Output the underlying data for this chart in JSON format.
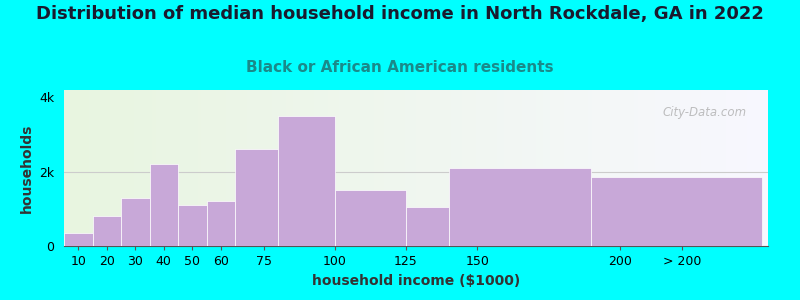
{
  "title": "Distribution of median household income in North Rockdale, GA in 2022",
  "subtitle": "Black or African American residents",
  "xlabel": "household income ($1000)",
  "ylabel": "households",
  "background_color": "#00FFFF",
  "bar_color": "#c8a8d8",
  "values": [
    350,
    800,
    1300,
    2200,
    1100,
    1200,
    2600,
    3500,
    1500,
    1050,
    2100,
    1850
  ],
  "bar_lefts": [
    5,
    15,
    25,
    35,
    45,
    55,
    65,
    80,
    100,
    125,
    140,
    190
  ],
  "bar_widths": [
    10,
    10,
    10,
    10,
    10,
    10,
    15,
    20,
    25,
    15,
    50,
    60
  ],
  "xtick_positions": [
    10,
    20,
    30,
    40,
    50,
    60,
    75,
    100,
    125,
    150,
    200,
    222
  ],
  "xtick_labels": [
    "10",
    "20",
    "30",
    "40",
    "50",
    "60",
    "75",
    "100",
    "125",
    "150",
    "200",
    "> 200"
  ],
  "yticks": [
    0,
    2000,
    4000
  ],
  "ytick_labels": [
    "0",
    "2k",
    "4k"
  ],
  "ylim": [
    0,
    4200
  ],
  "xlim": [
    5,
    252
  ],
  "title_fontsize": 13,
  "subtitle_fontsize": 11,
  "axis_label_fontsize": 10,
  "tick_fontsize": 9,
  "watermark_text": "City-Data.com",
  "grid_y": 2000,
  "title_color": "#1a1a2e",
  "subtitle_color": "#1a8a8a"
}
